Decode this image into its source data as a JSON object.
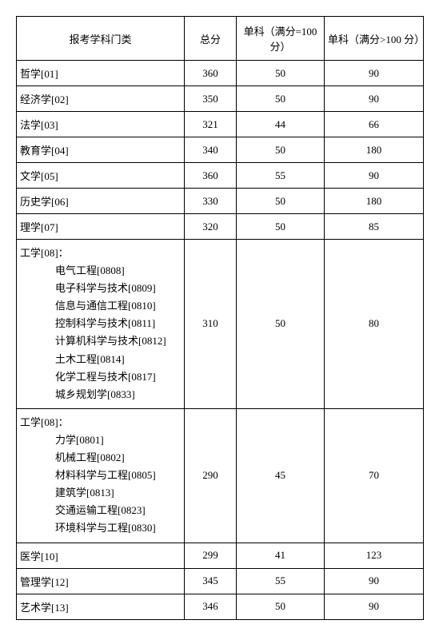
{
  "columns": [
    "报考学科门类",
    "总分",
    "单科（满分=100 分）",
    "单科（满分>100 分）"
  ],
  "rows": [
    {
      "cat": "哲学[01]",
      "total": "360",
      "s100": "50",
      "sgt": "90"
    },
    {
      "cat": "经济学[02]",
      "total": "350",
      "s100": "50",
      "sgt": "90"
    },
    {
      "cat": "法学[03]",
      "total": "321",
      "s100": "44",
      "sgt": "66"
    },
    {
      "cat": "教育学[04]",
      "total": "340",
      "s100": "50",
      "sgt": "180"
    },
    {
      "cat": "文学[05]",
      "total": "360",
      "s100": "55",
      "sgt": "90"
    },
    {
      "cat": "历史学[06]",
      "total": "330",
      "s100": "50",
      "sgt": "180"
    },
    {
      "cat": "理学[07]",
      "total": "320",
      "s100": "50",
      "sgt": "85"
    }
  ],
  "eng1": {
    "header": "工学[08]：",
    "subs": [
      "电气工程[0808]",
      "电子科学与技术[0809]",
      "信息与通信工程[0810]",
      "控制科学与技术[0811]",
      "计算机科学与技术[0812]",
      "土木工程[0814]",
      "化学工程与技术[0817]",
      "城乡规划学[0833]"
    ],
    "total": "310",
    "s100": "50",
    "sgt": "80"
  },
  "eng2": {
    "header": "工学[08]：",
    "subs": [
      "力学[0801]",
      "机械工程[0802]",
      "材料科学与工程[0805]",
      "建筑学[0813]",
      "交通运输工程[0823]",
      "环境科学与工程[0830]"
    ],
    "total": "290",
    "s100": "45",
    "sgt": "70"
  },
  "rows2": [
    {
      "cat": "医学[10]",
      "total": "299",
      "s100": "41",
      "sgt": "123"
    },
    {
      "cat": "管理学[12]",
      "total": "345",
      "s100": "55",
      "sgt": "90"
    },
    {
      "cat": "艺术学[13]",
      "total": "346",
      "s100": "50",
      "sgt": "90"
    }
  ]
}
